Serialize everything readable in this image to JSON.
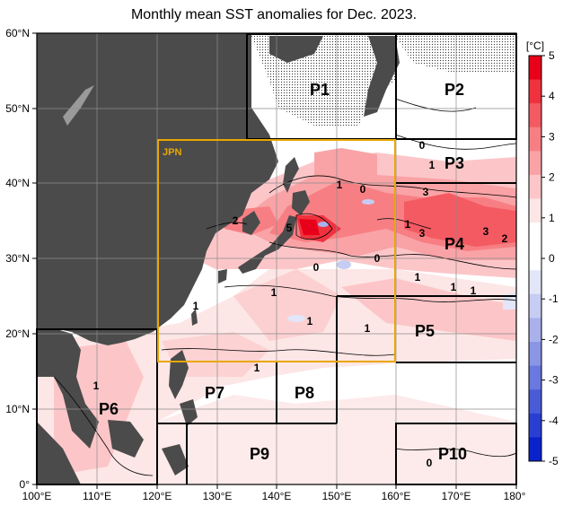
{
  "title": "Monthly mean SST anomalies for Dec. 2023.",
  "colorbar": {
    "unit": "[°C]",
    "ticks": [
      "5",
      "4",
      "3",
      "2",
      "1",
      "0",
      "-1",
      "-2",
      "-3",
      "-4",
      "-5"
    ],
    "colors": [
      "#e8001a",
      "#f0323f",
      "#f45a62",
      "#f77f84",
      "#f9a3a6",
      "#fcc6c8",
      "#fde6e6",
      "#ffffff",
      "#ffffff",
      "#e2e6f8",
      "#c6ccf2",
      "#a8b1ec",
      "#8a95e5",
      "#6a78df",
      "#4a5bd8",
      "#2a3fd2",
      "#0a22cc"
    ]
  },
  "axes": {
    "lon_labels": [
      "100°E",
      "110°E",
      "120°E",
      "130°E",
      "140°E",
      "150°E",
      "160°E",
      "170°E",
      "180°"
    ],
    "lat_labels": [
      "60°N",
      "50°N",
      "40°N",
      "30°N",
      "20°N",
      "10°N",
      "0°"
    ]
  },
  "regions": {
    "jpn": "JPN",
    "p1": "P1",
    "p2": "P2",
    "p3": "P3",
    "p4": "P4",
    "p5": "P5",
    "p6": "P6",
    "p7": "P7",
    "p8": "P8",
    "p9": "P9",
    "p10": "P10"
  },
  "contour_labels": [
    "1",
    "2",
    "5",
    "0",
    "1",
    "0",
    "0",
    "1",
    "1",
    "1",
    "3",
    "1",
    "3",
    "3",
    "2",
    "1",
    "1",
    "1",
    "1",
    "0",
    "1",
    "1",
    "0"
  ],
  "colors": {
    "land": "#4b4b4b",
    "jpn_box": "#e8a800",
    "grid": "#8c8c8c"
  }
}
